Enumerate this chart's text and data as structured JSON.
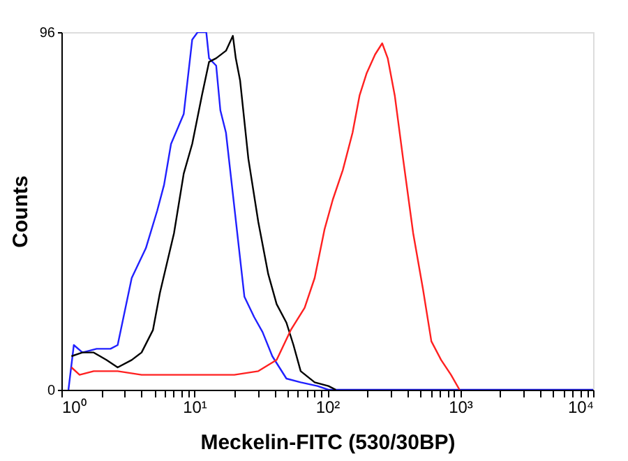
{
  "chart_data": {
    "type": "line",
    "xlabel": "Meckelin-FITC (530/30BP)",
    "ylabel": "Counts",
    "log": "x",
    "grid": false,
    "legend": false,
    "marker": "none",
    "line_style": "solid",
    "xlim": [
      1,
      10000
    ],
    "ylim": [
      0,
      96
    ],
    "xticks": [
      {
        "value": 1,
        "label": "10⁰"
      },
      {
        "value": 2,
        "label": null
      },
      {
        "value": 3,
        "label": null
      },
      {
        "value": 4,
        "label": null
      },
      {
        "value": 5,
        "label": null
      },
      {
        "value": 6,
        "label": null
      },
      {
        "value": 7,
        "label": null
      },
      {
        "value": 8,
        "label": null
      },
      {
        "value": 9,
        "label": null
      },
      {
        "value": 10,
        "label": "10¹"
      },
      {
        "value": 20,
        "label": null
      },
      {
        "value": 30,
        "label": null
      },
      {
        "value": 40,
        "label": null
      },
      {
        "value": 50,
        "label": null
      },
      {
        "value": 60,
        "label": null
      },
      {
        "value": 70,
        "label": null
      },
      {
        "value": 80,
        "label": null
      },
      {
        "value": 90,
        "label": null
      },
      {
        "value": 100,
        "label": "10²"
      },
      {
        "value": 200,
        "label": null
      },
      {
        "value": 300,
        "label": null
      },
      {
        "value": 400,
        "label": null
      },
      {
        "value": 500,
        "label": null
      },
      {
        "value": 600,
        "label": null
      },
      {
        "value": 700,
        "label": null
      },
      {
        "value": 800,
        "label": null
      },
      {
        "value": 900,
        "label": null
      },
      {
        "value": 1000,
        "label": "10³"
      },
      {
        "value": 2000,
        "label": null
      },
      {
        "value": 3000,
        "label": null
      },
      {
        "value": 4000,
        "label": null
      },
      {
        "value": 5000,
        "label": null
      },
      {
        "value": 6000,
        "label": null
      },
      {
        "value": 7000,
        "label": null
      },
      {
        "value": 8000,
        "label": null
      },
      {
        "value": 9000,
        "label": null
      },
      {
        "value": 10000,
        "label": "10⁴"
      }
    ],
    "yticks": [
      0,
      96
    ],
    "series": [
      {
        "color": "#2020ff",
        "x": [
          1.13,
          1.24,
          1.44,
          1.84,
          2.34,
          2.65,
          3.38,
          4.32,
          5.25,
          5.92,
          6.68,
          8.32,
          9.64,
          10.6,
          12.3,
          12.9,
          14.6,
          15.7,
          17.3,
          20.0,
          23.8,
          28.2,
          32.6,
          38.6,
          49.3,
          63.1,
          84.3,
          102,
          10000
        ],
        "values": [
          0,
          12,
          10,
          11,
          11,
          12,
          30,
          38,
          48,
          55,
          66,
          74,
          94,
          96,
          96,
          89,
          87,
          75,
          69,
          49,
          25,
          19.5,
          15.5,
          9,
          3,
          2,
          1,
          0,
          0
        ]
      },
      {
        "color": "#000000",
        "x": [
          1.19,
          1.44,
          1.75,
          2.18,
          2.65,
          3.38,
          4.01,
          4.88,
          5.51,
          7.03,
          8.32,
          9.64,
          11.4,
          12.9,
          14.6,
          17.3,
          19.5,
          20.5,
          22.1,
          25.5,
          30.3,
          36.0,
          41.6,
          49.3,
          55.7,
          63.1,
          80.4,
          102,
          116
        ],
        "values": [
          9,
          10,
          10,
          8,
          6,
          8,
          10,
          16,
          26,
          42,
          58,
          66,
          79,
          88,
          89,
          91,
          95,
          89,
          83,
          62,
          45,
          31,
          23,
          18,
          12,
          5,
          2,
          1,
          0
        ]
      },
      {
        "color": "#ff2020",
        "x": [
          1.19,
          1.37,
          1.75,
          2.65,
          4.01,
          5.92,
          8.95,
          20.0,
          30.3,
          41.6,
          53.1,
          67.6,
          80.4,
          95.3,
          110,
          131,
          155,
          175,
          198,
          229,
          259,
          285,
          322,
          372,
          443,
          525,
          607,
          719,
          853,
          989
        ],
        "values": [
          6,
          4,
          5,
          5,
          4,
          4,
          4,
          4,
          5,
          8,
          16,
          22,
          30,
          43,
          51,
          59,
          69,
          79,
          85,
          90,
          93,
          89,
          79,
          62,
          42,
          27,
          13,
          8,
          4,
          0
        ]
      }
    ]
  }
}
